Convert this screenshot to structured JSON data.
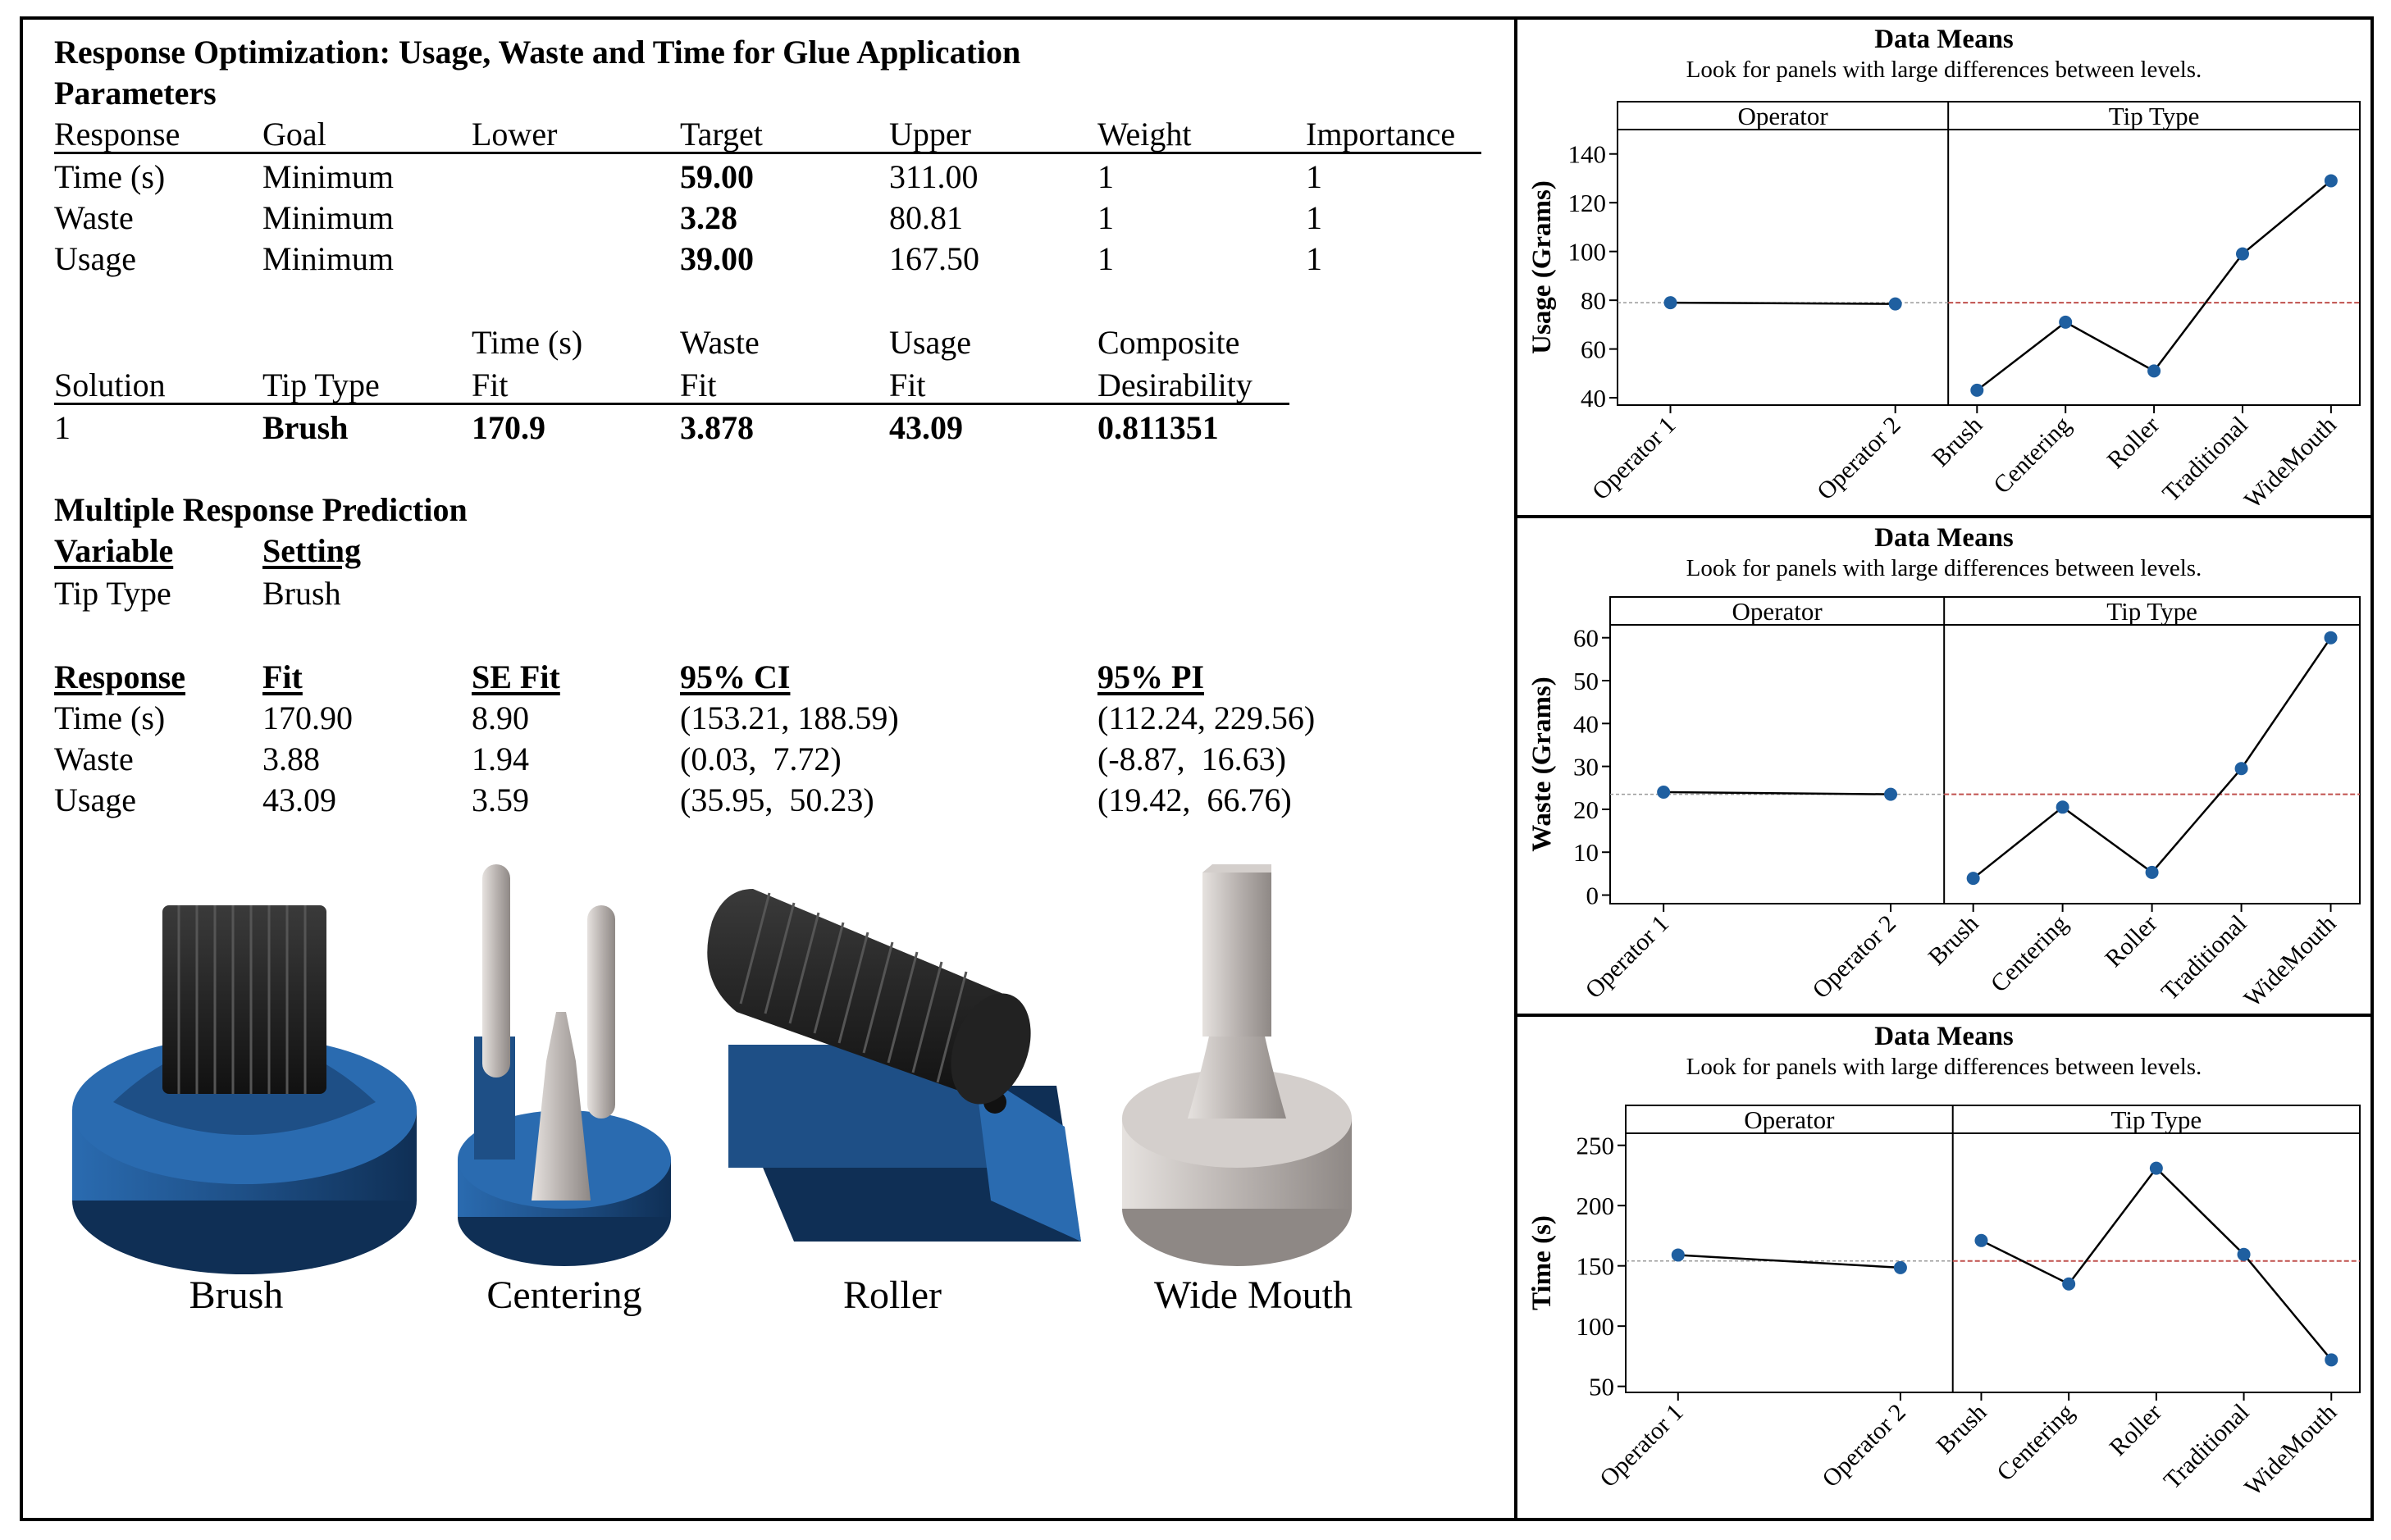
{
  "optimization": {
    "title": "Response Optimization: Usage, Waste and Time for Glue Application",
    "subtitle": "Parameters",
    "params_headers": [
      "Response",
      "Goal",
      "Lower",
      "Target",
      "Upper",
      "Weight",
      "Importance"
    ],
    "params_rows": [
      [
        "Time (s)",
        "Minimum",
        "",
        "59.00",
        "311.00",
        "1",
        "1"
      ],
      [
        "Waste",
        "Minimum",
        "",
        "3.28",
        "80.81",
        "1",
        "1"
      ],
      [
        "Usage",
        "Minimum",
        "",
        "39.00",
        "167.50",
        "1",
        "1"
      ]
    ],
    "solution_headers_top": [
      "",
      "",
      "Time (s)",
      "Waste",
      "Usage",
      "Composite"
    ],
    "solution_headers_bottom": [
      "Solution",
      "Tip Type",
      "Fit",
      "Fit",
      "Fit",
      "Desirability"
    ],
    "solution_row": [
      "1",
      "Brush",
      "170.9",
      "3.878",
      "43.09",
      "0.811351"
    ]
  },
  "prediction": {
    "title": "Multiple Response Prediction",
    "var_headers": [
      "Variable",
      "Setting"
    ],
    "var_row": [
      "Tip Type",
      "Brush"
    ],
    "headers": [
      "Response",
      "Fit",
      "SE Fit",
      "95% CI",
      "95% PI"
    ],
    "rows": [
      [
        "Time (s)",
        "170.90",
        "8.90",
        "(153.21, 188.59)",
        "(112.24, 229.56)"
      ],
      [
        "Waste",
        "3.88",
        "1.94",
        "(0.03,  7.72)",
        "(-8.87,  16.63)"
      ],
      [
        "Usage",
        "43.09",
        "3.59",
        "(35.95,  50.23)",
        "(19.42,  66.76)"
      ]
    ]
  },
  "tips": [
    "Brush",
    "Centering",
    "Roller",
    "Wide Mouth"
  ],
  "colors": {
    "point": "#1f5fa0",
    "mean_line": "#c0504d",
    "tip_blue": "#1e4f86",
    "tip_black": "#1a1a1a",
    "tip_silver": "#b9b3b0"
  },
  "chart_data": [
    {
      "type": "line",
      "title": "Data Means",
      "subtitle": "Look for panels with large differences between levels.",
      "ylabel": "Usage (Grams)",
      "ylim": [
        37,
        150
      ],
      "yticks": [
        40,
        60,
        80,
        100,
        120,
        140
      ],
      "mean_line": 79,
      "grid": false,
      "panels": [
        {
          "name": "Operator",
          "categories": [
            "Operator 1",
            "Operator 2"
          ],
          "values": [
            79,
            78.5
          ]
        },
        {
          "name": "Tip Type",
          "categories": [
            "Brush",
            "Centering",
            "Roller",
            "Traditional",
            "WideMouth"
          ],
          "values": [
            43.1,
            71,
            51,
            99,
            129
          ]
        }
      ]
    },
    {
      "type": "line",
      "title": "Data Means",
      "subtitle": "Look for panels with large differences between levels.",
      "ylabel": "Waste (Grams)",
      "ylim": [
        -2,
        63
      ],
      "yticks": [
        0,
        10,
        20,
        30,
        40,
        50,
        60
      ],
      "mean_line": 23.5,
      "grid": false,
      "panels": [
        {
          "name": "Operator",
          "categories": [
            "Operator 1",
            "Operator 2"
          ],
          "values": [
            24,
            23.5
          ]
        },
        {
          "name": "Tip Type",
          "categories": [
            "Brush",
            "Centering",
            "Roller",
            "Traditional",
            "WideMouth"
          ],
          "values": [
            3.9,
            20.5,
            5.3,
            29.5,
            60
          ]
        }
      ]
    },
    {
      "type": "line",
      "title": "Data Means",
      "subtitle": "Look for panels with large differences between levels.",
      "ylabel": "Time (s)",
      "ylim": [
        45,
        260
      ],
      "yticks": [
        50,
        100,
        150,
        200,
        250
      ],
      "mean_line": 154,
      "grid": false,
      "panels": [
        {
          "name": "Operator",
          "categories": [
            "Operator 1",
            "Operator 2"
          ],
          "values": [
            159,
            148.5
          ]
        },
        {
          "name": "Tip Type",
          "categories": [
            "Brush",
            "Centering",
            "Roller",
            "Traditional",
            "WideMouth"
          ],
          "values": [
            171,
            135,
            231,
            159.5,
            72
          ]
        }
      ]
    }
  ]
}
